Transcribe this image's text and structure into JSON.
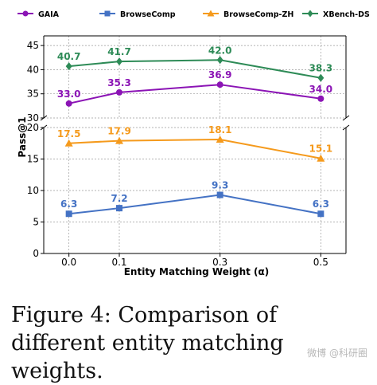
{
  "chart_data": {
    "type": "line",
    "xlabel": "Entity Matching Weight (α)",
    "ylabel": "Pass@1",
    "x": [
      0.0,
      0.1,
      0.3,
      0.5
    ],
    "x_ticks": [
      "0.0",
      "0.1",
      "0.3",
      "0.5"
    ],
    "y_upper_ticks": [
      "30",
      "35",
      "40",
      "45"
    ],
    "y_lower_ticks": [
      "0",
      "5",
      "10",
      "15",
      "20"
    ],
    "ylim_upper": [
      30,
      47
    ],
    "ylim_lower": [
      0,
      20
    ],
    "broken_axis": true,
    "grid": true,
    "legend_position": "top",
    "series": [
      {
        "name": "GAIA",
        "color": "#8b14b5",
        "marker": "circle",
        "panel": "upper",
        "values": [
          33.0,
          35.3,
          36.9,
          34.0
        ],
        "labels": [
          "33.0",
          "35.3",
          "36.9",
          "34.0"
        ]
      },
      {
        "name": "BrowseComp",
        "color": "#4472c4",
        "marker": "square",
        "panel": "lower",
        "values": [
          6.3,
          7.2,
          9.3,
          6.3
        ],
        "labels": [
          "6.3",
          "7.2",
          "9.3",
          "6.3"
        ]
      },
      {
        "name": "BrowseComp-ZH",
        "color": "#f59a1c",
        "marker": "triangle",
        "panel": "lower",
        "values": [
          17.5,
          17.9,
          18.1,
          15.1
        ],
        "labels": [
          "17.5",
          "17.9",
          "18.1",
          "15.1"
        ]
      },
      {
        "name": "XBench-DS",
        "color": "#2e8b57",
        "marker": "diamond",
        "panel": "upper",
        "values": [
          40.7,
          41.7,
          42.0,
          38.3
        ],
        "labels": [
          "40.7",
          "41.7",
          "42.0",
          "38.3"
        ]
      }
    ]
  },
  "caption": "Figure 4: Comparison of different entity matching weights.",
  "watermark": "微博 @科研圈"
}
